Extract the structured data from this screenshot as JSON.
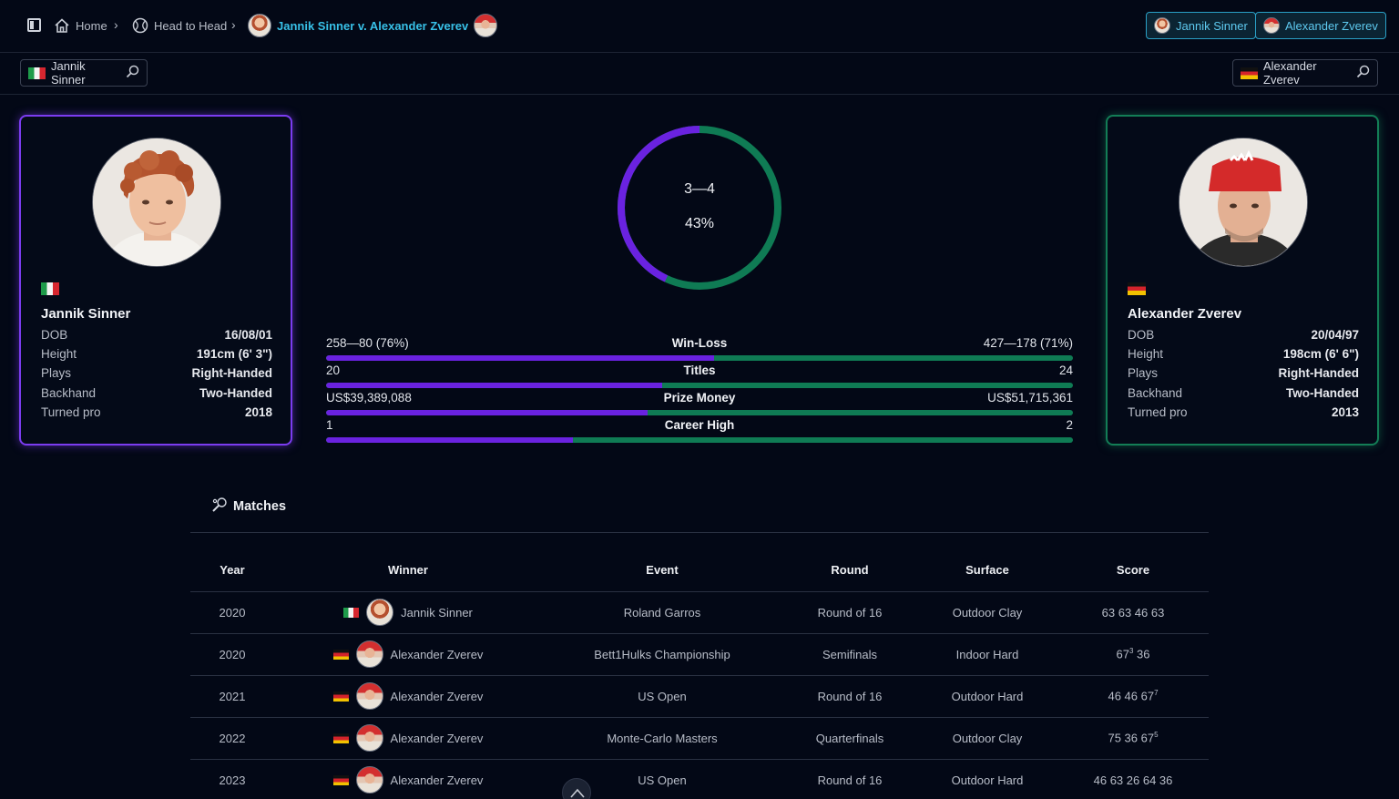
{
  "breadcrumb": {
    "home": "Home",
    "section": "Head to Head",
    "current": "Jannik Sinner v. Alexander Zverev"
  },
  "chips": {
    "p1": "Jannik Sinner",
    "p2": "Alexander Zverev"
  },
  "search": {
    "p1": "Jannik Sinner",
    "p2": "Alexander Zverev"
  },
  "colors": {
    "p1": "#6a22e0",
    "p2": "#0f7b54",
    "accent": "#38c1e8"
  },
  "player1": {
    "name": "Jannik Sinner",
    "flag": "flag-italy",
    "rows": [
      {
        "k": "DOB",
        "v": "16/08/01"
      },
      {
        "k": "Height",
        "v": "191cm (6' 3\")"
      },
      {
        "k": "Plays",
        "v": "Right-Handed"
      },
      {
        "k": "Backhand",
        "v": "Two-Handed"
      },
      {
        "k": "Turned pro",
        "v": "2018"
      }
    ]
  },
  "player2": {
    "name": "Alexander Zverev",
    "flag": "flag-germany",
    "rows": [
      {
        "k": "DOB",
        "v": "20/04/97"
      },
      {
        "k": "Height",
        "v": "198cm (6' 6\")"
      },
      {
        "k": "Plays",
        "v": "Right-Handed"
      },
      {
        "k": "Backhand",
        "v": "Two-Handed"
      },
      {
        "k": "Turned pro",
        "v": "2013"
      }
    ]
  },
  "h2h": {
    "record": "3—4",
    "pct": "43%",
    "fraction": 0.43
  },
  "comparison": [
    {
      "label": "Win-Loss",
      "left": "258—80 (76%)",
      "right": "427—178 (71%)",
      "share": 0.52
    },
    {
      "label": "Titles",
      "left": "20",
      "right": "24",
      "share": 0.45
    },
    {
      "label": "Prize Money",
      "left": "US$39,389,088",
      "right": "US$51,715,361",
      "share": 0.43
    },
    {
      "label": "Career High",
      "left": "1",
      "right": "2",
      "share": 0.33
    }
  ],
  "matches": {
    "title": "Matches",
    "headers": [
      "Year",
      "Winner",
      "Event",
      "Round",
      "Surface",
      "Score"
    ],
    "rows": [
      {
        "year": "2020",
        "winner": "Jannik Sinner",
        "p": 1,
        "event": "Roland Garros",
        "round": "Round of 16",
        "surface": "Outdoor Clay",
        "score": "63 63 46 63",
        "sup": ""
      },
      {
        "year": "2020",
        "winner": "Alexander Zverev",
        "p": 2,
        "event": "Bett1Hulks Championship",
        "round": "Semifinals",
        "surface": "Indoor Hard",
        "score": "67",
        "sup": "3",
        "tail": " 36"
      },
      {
        "year": "2021",
        "winner": "Alexander Zverev",
        "p": 2,
        "event": "US Open",
        "round": "Round of 16",
        "surface": "Outdoor Hard",
        "score": "46 46 67",
        "sup": "7",
        "tail": ""
      },
      {
        "year": "2022",
        "winner": "Alexander Zverev",
        "p": 2,
        "event": "Monte-Carlo Masters",
        "round": "Quarterfinals",
        "surface": "Outdoor Clay",
        "score": "75 36 67",
        "sup": "5",
        "tail": ""
      },
      {
        "year": "2023",
        "winner": "Alexander Zverev",
        "p": 2,
        "event": "US Open",
        "round": "Round of 16",
        "surface": "Outdoor Hard",
        "score": "46 63 26 64 36",
        "sup": ""
      }
    ]
  }
}
